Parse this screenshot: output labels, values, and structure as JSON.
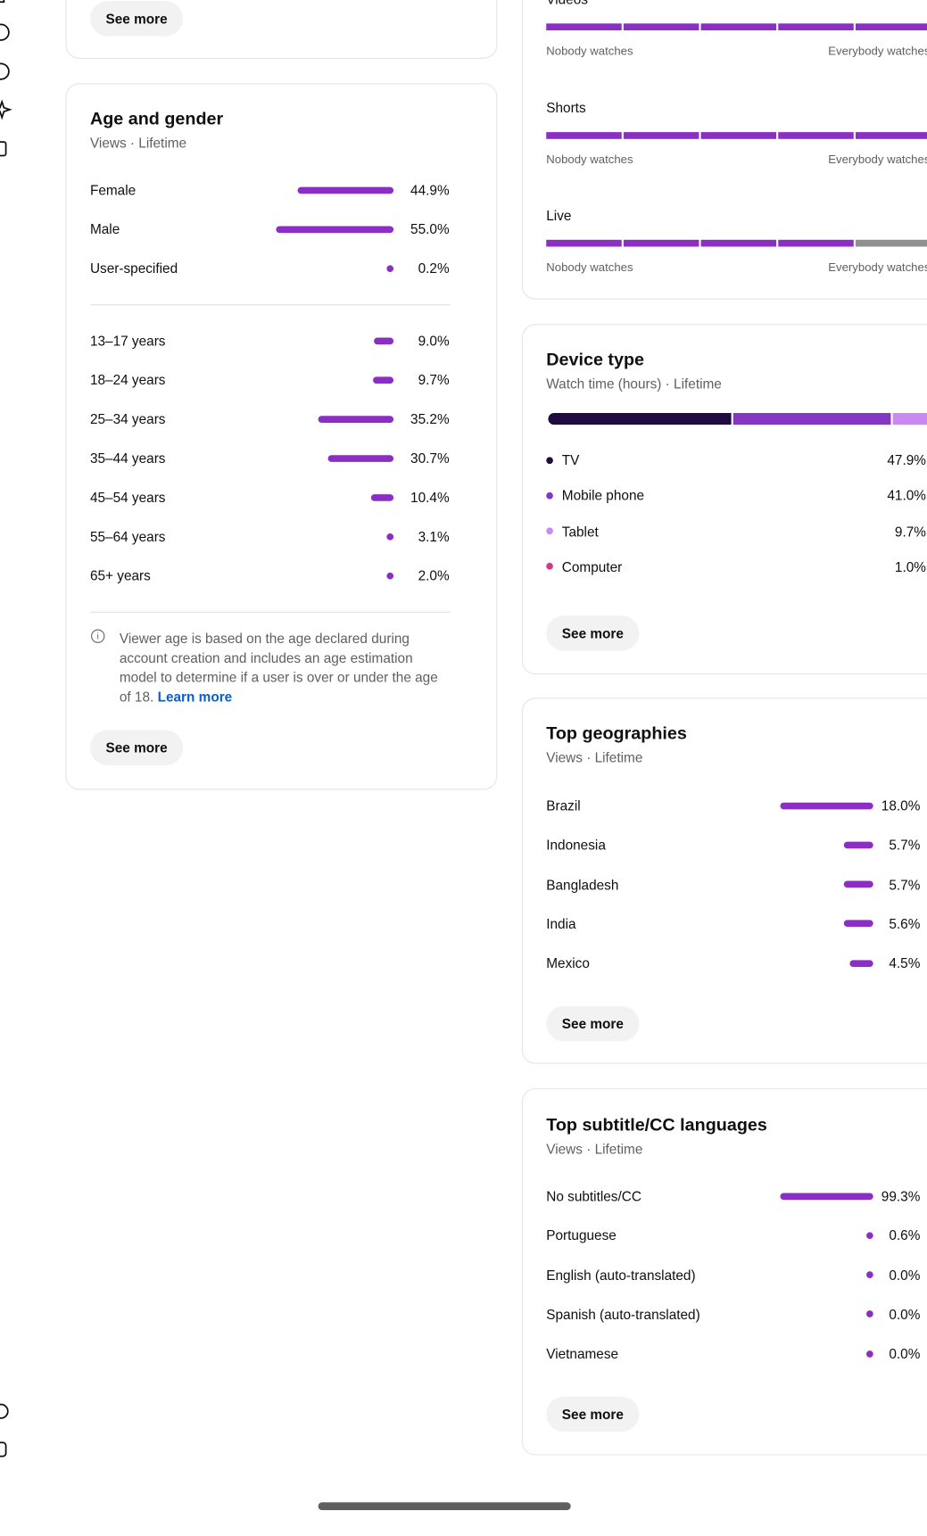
{
  "top_card": {
    "button": "See more"
  },
  "format_card": {
    "segments": 5,
    "rows": [
      {
        "label": "Videos",
        "level": 5,
        "low": "Nobody watches",
        "high": "Everybody watches"
      },
      {
        "label": "Shorts",
        "level": 5,
        "low": "Nobody watches",
        "high": "Everybody watches"
      },
      {
        "label": "Live",
        "level": 4,
        "low": "Nobody watches",
        "high": "Everybody watches"
      }
    ]
  },
  "age_gender": {
    "title": "Age and gender",
    "subtitle": "Views · Lifetime",
    "gender": [
      {
        "label": "Female",
        "value": 44.9,
        "value_label": "44.9%"
      },
      {
        "label": "Male",
        "value": 55.0,
        "value_label": "55.0%"
      },
      {
        "label": "User-specified",
        "value": 0.2,
        "value_label": "0.2%"
      }
    ],
    "ages": [
      {
        "label": "13–17 years",
        "value": 9.0,
        "value_label": "9.0%"
      },
      {
        "label": "18–24 years",
        "value": 9.7,
        "value_label": "9.7%"
      },
      {
        "label": "25–34 years",
        "value": 35.2,
        "value_label": "35.2%"
      },
      {
        "label": "35–44 years",
        "value": 30.7,
        "value_label": "30.7%"
      },
      {
        "label": "45–54 years",
        "value": 10.4,
        "value_label": "10.4%"
      },
      {
        "label": "55–64 years",
        "value": 3.1,
        "value_label": "3.1%"
      },
      {
        "label": "65+ years",
        "value": 2.0,
        "value_label": "2.0%"
      }
    ],
    "note": "Viewer age is based on the age declared during account creation and includes an age estimation model to determine if a user is over or under the age of 18.",
    "link": "Learn more",
    "button": "See more"
  },
  "device_type": {
    "title": "Device type",
    "subtitle": "Watch time (hours) · Lifetime",
    "items": [
      {
        "label": "TV",
        "value": 47.9,
        "value_label": "47.9%",
        "color": "#1f0b3f"
      },
      {
        "label": "Mobile phone",
        "value": 41.0,
        "value_label": "41.0%",
        "color": "#8537c4"
      },
      {
        "label": "Tablet",
        "value": 9.7,
        "value_label": "9.7%",
        "color": "#c88af2"
      },
      {
        "label": "Computer",
        "value": 1.0,
        "value_label": "1.0%",
        "color": "#d2368f"
      }
    ],
    "button": "See more"
  },
  "geographies": {
    "title": "Top geographies",
    "subtitle": "Views · Lifetime",
    "rows": [
      {
        "label": "Brazil",
        "value": 18.0,
        "value_label": "18.0%"
      },
      {
        "label": "Indonesia",
        "value": 5.7,
        "value_label": "5.7%"
      },
      {
        "label": "Bangladesh",
        "value": 5.7,
        "value_label": "5.7%"
      },
      {
        "label": "India",
        "value": 5.6,
        "value_label": "5.6%"
      },
      {
        "label": "Mexico",
        "value": 4.5,
        "value_label": "4.5%"
      }
    ],
    "button": "See more"
  },
  "subtitles": {
    "title": "Top subtitle/CC languages",
    "subtitle": "Views · Lifetime",
    "rows": [
      {
        "label": "No subtitles/CC",
        "value": 99.3,
        "value_label": "99.3%"
      },
      {
        "label": "Portuguese",
        "value": 0.6,
        "value_label": "0.6%"
      },
      {
        "label": "English (auto-translated)",
        "value": 0.0,
        "value_label": "0.0%"
      },
      {
        "label": "Spanish (auto-translated)",
        "value": 0.0,
        "value_label": "0.0%"
      },
      {
        "label": "Vietnamese",
        "value": 0.0,
        "value_label": "0.0%"
      }
    ],
    "button": "See more"
  }
}
